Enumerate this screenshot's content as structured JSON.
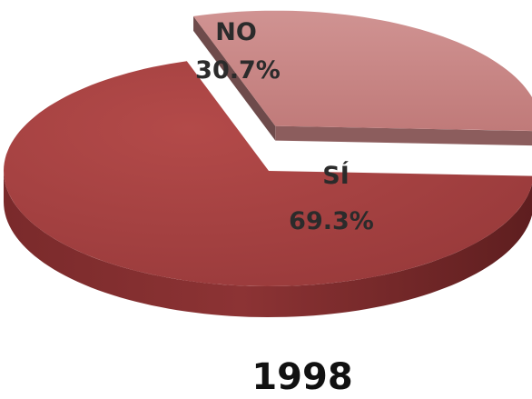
{
  "chart_data": {
    "type": "pie",
    "subtype": "3d-exploded",
    "title": "1998",
    "slices": [
      {
        "label": "SÍ",
        "value": 69.3,
        "value_label": "69.3%",
        "color": "#A3403F"
      },
      {
        "label": "NO",
        "value": 30.7,
        "value_label": "30.7%",
        "color": "#C98584"
      }
    ],
    "exploded_slice": "NO",
    "legend": "none"
  }
}
